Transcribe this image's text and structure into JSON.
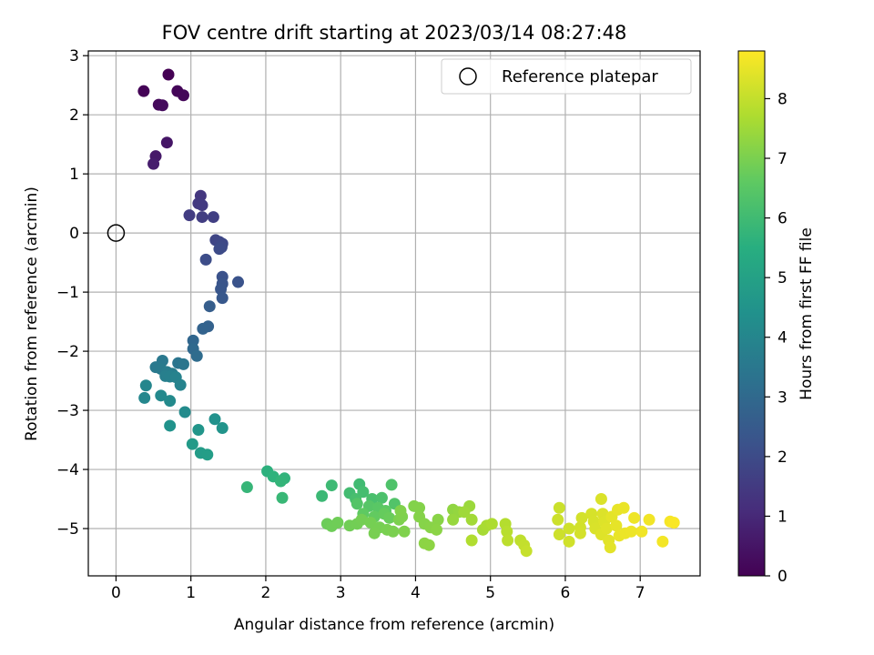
{
  "chart_data": {
    "type": "scatter",
    "title": "FOV centre drift starting at 2023/03/14 08:27:48",
    "xlabel": "Angular distance from reference (arcmin)",
    "ylabel": "Rotation from reference (arcmin)",
    "xlim": [
      -0.37,
      7.8
    ],
    "ylim": [
      -5.8,
      3.08
    ],
    "x_ticks": [
      "0",
      "1",
      "2",
      "3",
      "4",
      "5",
      "6",
      "7"
    ],
    "y_ticks": [
      "3",
      "2",
      "1",
      "0",
      "−1",
      "−2",
      "−3",
      "−4",
      "−5"
    ],
    "grid": true,
    "legend": {
      "placement": "upper right",
      "entries": [
        "Reference platepar"
      ]
    },
    "reference_point": {
      "x": 0.0,
      "y": 0.0
    },
    "colorbar": {
      "label": "Hours from first FF file",
      "range": [
        0,
        8.8
      ],
      "ticks": [
        "0",
        "1",
        "2",
        "3",
        "4",
        "5",
        "6",
        "7",
        "8"
      ],
      "colormap": "viridis"
    },
    "series": [
      {
        "points": [
          [
            0.7,
            2.68,
            0.0
          ],
          [
            0.37,
            2.4,
            0.05
          ],
          [
            0.82,
            2.4,
            0.1
          ],
          [
            0.9,
            2.33,
            0.15
          ],
          [
            0.57,
            2.17,
            0.2
          ],
          [
            0.62,
            2.16,
            0.25
          ],
          [
            0.68,
            1.53,
            0.5
          ],
          [
            0.53,
            1.3,
            0.6
          ],
          [
            0.5,
            1.17,
            0.7
          ],
          [
            1.13,
            0.63,
            1.4
          ],
          [
            1.1,
            0.5,
            1.45
          ],
          [
            1.15,
            0.47,
            1.5
          ],
          [
            0.98,
            0.3,
            1.55
          ],
          [
            1.15,
            0.27,
            1.6
          ],
          [
            1.3,
            0.27,
            1.65
          ],
          [
            1.33,
            -0.12,
            1.8
          ],
          [
            1.38,
            -0.15,
            1.85
          ],
          [
            1.42,
            -0.18,
            1.9
          ],
          [
            1.41,
            -0.24,
            1.95
          ],
          [
            1.38,
            -0.27,
            2.0
          ],
          [
            1.2,
            -0.45,
            2.05
          ],
          [
            1.42,
            -0.74,
            2.2
          ],
          [
            1.63,
            -0.83,
            2.25
          ],
          [
            1.42,
            -0.86,
            2.3
          ],
          [
            1.4,
            -0.95,
            2.35
          ],
          [
            1.42,
            -1.1,
            2.4
          ],
          [
            1.25,
            -1.24,
            2.6
          ],
          [
            1.23,
            -1.58,
            2.75
          ],
          [
            1.16,
            -1.62,
            2.8
          ],
          [
            1.03,
            -1.82,
            2.9
          ],
          [
            1.03,
            -1.96,
            3.0
          ],
          [
            1.08,
            -2.08,
            3.1
          ],
          [
            0.83,
            -2.2,
            3.4
          ],
          [
            0.9,
            -2.22,
            3.45
          ],
          [
            0.62,
            -2.16,
            3.5
          ],
          [
            0.53,
            -2.27,
            3.55
          ],
          [
            0.6,
            -2.3,
            3.6
          ],
          [
            0.68,
            -2.35,
            3.65
          ],
          [
            0.75,
            -2.38,
            3.7
          ],
          [
            0.66,
            -2.42,
            3.75
          ],
          [
            0.72,
            -2.43,
            3.8
          ],
          [
            0.8,
            -2.44,
            3.85
          ],
          [
            0.86,
            -2.57,
            3.9
          ],
          [
            0.4,
            -2.58,
            4.0
          ],
          [
            0.38,
            -2.79,
            4.05
          ],
          [
            0.6,
            -2.75,
            4.1
          ],
          [
            0.72,
            -2.84,
            4.15
          ],
          [
            0.92,
            -3.03,
            4.2
          ],
          [
            1.32,
            -3.15,
            4.4
          ],
          [
            0.72,
            -3.26,
            4.45
          ],
          [
            1.42,
            -3.3,
            4.5
          ],
          [
            1.1,
            -3.33,
            4.55
          ],
          [
            1.02,
            -3.57,
            4.75
          ],
          [
            1.13,
            -3.72,
            4.8
          ],
          [
            1.22,
            -3.75,
            4.85
          ],
          [
            2.02,
            -4.03,
            5.6
          ],
          [
            2.1,
            -4.12,
            5.65
          ],
          [
            2.25,
            -4.15,
            5.7
          ],
          [
            2.2,
            -4.2,
            5.75
          ],
          [
            1.75,
            -4.3,
            5.8
          ],
          [
            2.22,
            -4.48,
            5.85
          ],
          [
            2.75,
            -4.45,
            5.9
          ],
          [
            2.88,
            -4.27,
            5.95
          ],
          [
            3.25,
            -4.25,
            6.0
          ],
          [
            3.12,
            -4.4,
            6.05
          ],
          [
            3.3,
            -4.38,
            6.1
          ],
          [
            3.2,
            -4.5,
            6.15
          ],
          [
            3.42,
            -4.5,
            6.2
          ],
          [
            3.55,
            -4.48,
            6.25
          ],
          [
            3.68,
            -4.26,
            6.3
          ],
          [
            3.72,
            -4.58,
            6.35
          ],
          [
            3.22,
            -4.58,
            6.4
          ],
          [
            3.38,
            -4.62,
            6.45
          ],
          [
            3.5,
            -4.65,
            6.5
          ],
          [
            3.6,
            -4.7,
            6.55
          ],
          [
            3.3,
            -4.75,
            6.6
          ],
          [
            3.45,
            -4.8,
            6.65
          ],
          [
            3.58,
            -4.75,
            6.7
          ],
          [
            3.65,
            -4.82,
            6.75
          ],
          [
            2.82,
            -4.92,
            6.8
          ],
          [
            2.88,
            -4.96,
            6.82
          ],
          [
            2.96,
            -4.9,
            6.84
          ],
          [
            3.12,
            -4.95,
            6.86
          ],
          [
            3.22,
            -4.92,
            6.88
          ],
          [
            3.28,
            -4.85,
            6.9
          ],
          [
            3.4,
            -4.9,
            6.92
          ],
          [
            3.52,
            -4.98,
            6.94
          ],
          [
            3.45,
            -5.08,
            6.96
          ],
          [
            3.62,
            -5.02,
            6.98
          ],
          [
            3.7,
            -5.05,
            7.0
          ],
          [
            3.78,
            -4.85,
            7.02
          ],
          [
            3.82,
            -4.8,
            7.04
          ],
          [
            3.85,
            -5.05,
            7.06
          ],
          [
            3.8,
            -4.7,
            7.08
          ],
          [
            3.98,
            -4.62,
            7.1
          ],
          [
            4.05,
            -4.65,
            7.12
          ],
          [
            4.05,
            -4.8,
            7.14
          ],
          [
            4.12,
            -4.92,
            7.16
          ],
          [
            4.2,
            -4.98,
            7.18
          ],
          [
            4.3,
            -4.85,
            7.2
          ],
          [
            4.28,
            -5.02,
            7.22
          ],
          [
            4.12,
            -5.25,
            7.24
          ],
          [
            4.18,
            -5.28,
            7.26
          ],
          [
            4.5,
            -4.68,
            7.3
          ],
          [
            4.58,
            -4.72,
            7.35
          ],
          [
            4.5,
            -4.85,
            7.4
          ],
          [
            4.72,
            -4.62,
            7.45
          ],
          [
            4.65,
            -4.72,
            7.5
          ],
          [
            4.75,
            -4.85,
            7.55
          ],
          [
            4.9,
            -5.02,
            7.6
          ],
          [
            4.95,
            -4.95,
            7.65
          ],
          [
            5.02,
            -4.92,
            7.7
          ],
          [
            4.75,
            -5.2,
            7.75
          ],
          [
            5.2,
            -4.92,
            7.8
          ],
          [
            5.22,
            -5.05,
            7.85
          ],
          [
            5.23,
            -5.2,
            7.9
          ],
          [
            5.4,
            -5.2,
            7.95
          ],
          [
            5.45,
            -5.28,
            8.0
          ],
          [
            5.48,
            -5.38,
            8.05
          ],
          [
            5.92,
            -4.65,
            8.1
          ],
          [
            5.9,
            -4.85,
            8.12
          ],
          [
            5.92,
            -5.1,
            8.14
          ],
          [
            6.05,
            -5.0,
            8.16
          ],
          [
            6.05,
            -5.22,
            8.18
          ],
          [
            6.2,
            -4.98,
            8.2
          ],
          [
            6.22,
            -4.82,
            8.22
          ],
          [
            6.2,
            -5.08,
            8.24
          ],
          [
            6.35,
            -4.75,
            8.26
          ],
          [
            6.38,
            -4.88,
            8.28
          ],
          [
            6.4,
            -5.0,
            8.3
          ],
          [
            6.48,
            -4.5,
            8.32
          ],
          [
            6.5,
            -4.75,
            8.34
          ],
          [
            6.52,
            -4.88,
            8.36
          ],
          [
            6.48,
            -5.1,
            8.38
          ],
          [
            6.55,
            -5.0,
            8.4
          ],
          [
            6.58,
            -5.2,
            8.42
          ],
          [
            6.6,
            -5.32,
            8.44
          ],
          [
            6.62,
            -4.8,
            8.46
          ],
          [
            6.68,
            -4.95,
            8.48
          ],
          [
            6.7,
            -4.68,
            8.5
          ],
          [
            6.72,
            -5.12,
            8.52
          ],
          [
            6.78,
            -4.65,
            8.54
          ],
          [
            6.8,
            -5.08,
            8.56
          ],
          [
            6.88,
            -5.05,
            8.58
          ],
          [
            6.92,
            -4.82,
            8.6
          ],
          [
            7.02,
            -5.05,
            8.62
          ],
          [
            7.12,
            -4.85,
            8.64
          ],
          [
            7.3,
            -5.22,
            8.66
          ],
          [
            7.4,
            -4.88,
            8.7
          ],
          [
            7.45,
            -4.9,
            8.75
          ]
        ]
      }
    ]
  }
}
